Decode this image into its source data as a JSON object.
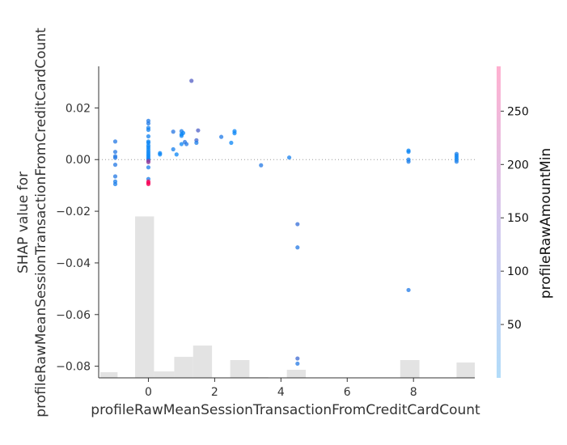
{
  "chart_data": {
    "type": "scatter",
    "title": "",
    "xlabel": "profileRawMeanSessionTransactionFromCreditCardCount",
    "ylabel_line1": "SHAP value for",
    "ylabel_line2": "profileRawMeanSessionTransactionFromCreditCardCount",
    "xlim": [
      -1.5,
      9.85
    ],
    "ylim": [
      -0.0845,
      0.0361
    ],
    "xticks": [
      0,
      2,
      4,
      6,
      8
    ],
    "xtick_labels": [
      "0",
      "2",
      "4",
      "6",
      "8"
    ],
    "yticks": [
      0.02,
      0.0,
      -0.02,
      -0.04,
      -0.06,
      -0.08
    ],
    "ytick_labels": [
      "0.02",
      "0.00",
      "−0.02",
      "−0.04",
      "−0.06",
      "−0.08"
    ],
    "zero_line": true,
    "colorbar": {
      "label": "profileRawAmountMin",
      "range": [
        0,
        292
      ],
      "ticks": [
        50,
        100,
        150,
        200,
        250
      ],
      "tick_labels": [
        "50",
        "100",
        "150",
        "200",
        "250"
      ],
      "colors": [
        "#008bfb",
        "#ff0052"
      ]
    },
    "histogram": {
      "color": "#e3e3e3",
      "bins": [
        {
          "x0": -1.45,
          "x1": -0.93,
          "height": 0.035
        },
        {
          "x0": -0.4,
          "x1": 0.17,
          "height": 1.0
        },
        {
          "x0": 0.17,
          "x1": 0.78,
          "height": 0.04
        },
        {
          "x0": 0.78,
          "x1": 1.35,
          "height": 0.13
        },
        {
          "x0": 1.35,
          "x1": 1.92,
          "height": 0.2
        },
        {
          "x0": 2.47,
          "x1": 3.05,
          "height": 0.11
        },
        {
          "x0": 3.05,
          "x1": 3.62,
          "height": 0.004
        },
        {
          "x0": 4.18,
          "x1": 4.75,
          "height": 0.05
        },
        {
          "x0": 7.6,
          "x1": 8.18,
          "height": 0.11
        },
        {
          "x0": 9.3,
          "x1": 9.85,
          "height": 0.095
        }
      ]
    },
    "points": [
      {
        "x": -1,
        "y": 0.007,
        "c": 40
      },
      {
        "x": -1,
        "y": 0.003,
        "c": 40
      },
      {
        "x": -1,
        "y": 0.0007,
        "c": 40
      },
      {
        "x": -1,
        "y": 0.0013,
        "c": 40
      },
      {
        "x": -1,
        "y": -0.002,
        "c": 40
      },
      {
        "x": -1,
        "y": -0.0065,
        "c": 40
      },
      {
        "x": -1,
        "y": -0.0085,
        "c": 30
      },
      {
        "x": -1,
        "y": -0.0095,
        "c": 30
      },
      {
        "x": 0,
        "y": 0.015,
        "c": 35
      },
      {
        "x": 0,
        "y": 0.014,
        "c": 35
      },
      {
        "x": 0,
        "y": 0.0123,
        "c": 20
      },
      {
        "x": 0,
        "y": 0.0115,
        "c": 20
      },
      {
        "x": 0,
        "y": 0.009,
        "c": 20
      },
      {
        "x": 0,
        "y": 0.007,
        "c": 10
      },
      {
        "x": 0,
        "y": 0.0065,
        "c": 10
      },
      {
        "x": 0,
        "y": 0.0055,
        "c": 10
      },
      {
        "x": 0,
        "y": 0.0048,
        "c": 10
      },
      {
        "x": 0,
        "y": 0.004,
        "c": 10
      },
      {
        "x": 0,
        "y": 0.0032,
        "c": 10
      },
      {
        "x": 0,
        "y": 0.0025,
        "c": 10
      },
      {
        "x": 0,
        "y": 0.0018,
        "c": 10
      },
      {
        "x": 0,
        "y": 0.0012,
        "c": 10
      },
      {
        "x": 0,
        "y": 0.0005,
        "c": 10
      },
      {
        "x": 0,
        "y": 0.0,
        "c": 10
      },
      {
        "x": 0,
        "y": -0.0005,
        "c": 160
      },
      {
        "x": 0,
        "y": -0.001,
        "c": 165
      },
      {
        "x": 0,
        "y": -0.003,
        "c": 30
      },
      {
        "x": 0,
        "y": -0.0075,
        "c": 30
      },
      {
        "x": 0,
        "y": -0.0085,
        "c": 280
      },
      {
        "x": 0,
        "y": -0.009,
        "c": 285
      },
      {
        "x": 0,
        "y": -0.0095,
        "c": 280
      },
      {
        "x": 0.35,
        "y": 0.0025,
        "c": 10
      },
      {
        "x": 0.35,
        "y": 0.002,
        "c": 10
      },
      {
        "x": 0.75,
        "y": 0.0108,
        "c": 45
      },
      {
        "x": 0.75,
        "y": 0.004,
        "c": 25
      },
      {
        "x": 0.85,
        "y": 0.002,
        "c": 10
      },
      {
        "x": 1.0,
        "y": 0.011,
        "c": 30
      },
      {
        "x": 1.0,
        "y": 0.0098,
        "c": 10
      },
      {
        "x": 1.0,
        "y": 0.0092,
        "c": 10
      },
      {
        "x": 1.0,
        "y": 0.006,
        "c": 10
      },
      {
        "x": 1.05,
        "y": 0.0103,
        "c": 10
      },
      {
        "x": 1.1,
        "y": 0.0068,
        "c": 45
      },
      {
        "x": 1.15,
        "y": 0.006,
        "c": 40
      },
      {
        "x": 1.3,
        "y": 0.0305,
        "c": 95
      },
      {
        "x": 1.45,
        "y": 0.0075,
        "c": 75
      },
      {
        "x": 1.45,
        "y": 0.0065,
        "c": 30
      },
      {
        "x": 1.5,
        "y": 0.0113,
        "c": 90
      },
      {
        "x": 2.2,
        "y": 0.0088,
        "c": 35
      },
      {
        "x": 2.5,
        "y": 0.0065,
        "c": 10
      },
      {
        "x": 2.6,
        "y": 0.011,
        "c": 10
      },
      {
        "x": 2.6,
        "y": 0.0102,
        "c": 10
      },
      {
        "x": 3.4,
        "y": -0.0022,
        "c": 40
      },
      {
        "x": 4.25,
        "y": 0.0008,
        "c": 25
      },
      {
        "x": 4.5,
        "y": -0.025,
        "c": 60
      },
      {
        "x": 4.5,
        "y": -0.034,
        "c": 40
      },
      {
        "x": 4.5,
        "y": -0.077,
        "c": 70
      },
      {
        "x": 4.5,
        "y": -0.079,
        "c": 40
      },
      {
        "x": 7.85,
        "y": 0.0035,
        "c": 10
      },
      {
        "x": 7.85,
        "y": 0.003,
        "c": 10
      },
      {
        "x": 7.85,
        "y": 0.0,
        "c": 25
      },
      {
        "x": 7.85,
        "y": -0.0008,
        "c": 30
      },
      {
        "x": 7.85,
        "y": -0.0505,
        "c": 35
      },
      {
        "x": 9.3,
        "y": 0.0022,
        "c": 30
      },
      {
        "x": 9.3,
        "y": 0.0015,
        "c": 15
      },
      {
        "x": 9.3,
        "y": 0.0008,
        "c": 15
      },
      {
        "x": 9.3,
        "y": 0.0,
        "c": 15
      },
      {
        "x": 9.3,
        "y": -0.0008,
        "c": 30
      }
    ]
  }
}
